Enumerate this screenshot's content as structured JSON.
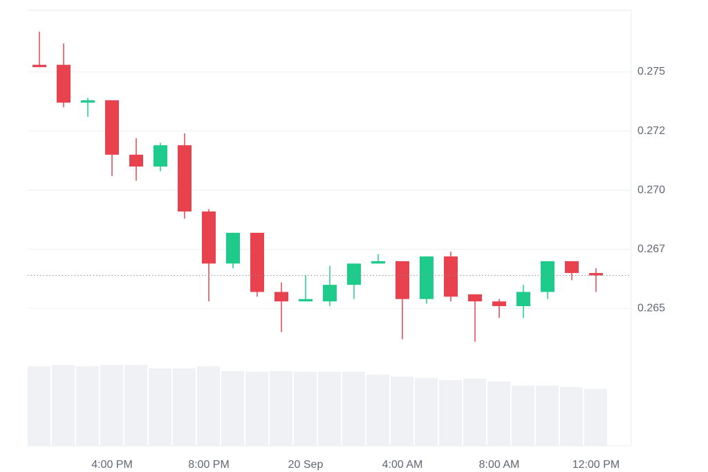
{
  "chart_data": {
    "type": "candlestick",
    "categories": [
      null,
      null,
      null,
      "4:00 PM",
      null,
      null,
      null,
      "8:00 PM",
      null,
      null,
      null,
      "20 Sep",
      null,
      null,
      null,
      "4:00 AM",
      null,
      null,
      null,
      "8:00 AM",
      null,
      null,
      null,
      "12:00 PM"
    ],
    "open": [
      0.2753,
      0.2753,
      0.2737,
      0.2738,
      0.2715,
      0.271,
      0.2719,
      0.2691,
      0.2669,
      0.2682,
      0.2657,
      0.2653,
      0.2653,
      0.266,
      0.2669,
      0.267,
      0.2654,
      0.2672,
      0.2656,
      0.2653,
      0.2651,
      0.2657,
      0.267,
      0.2665
    ],
    "high": [
      0.2767,
      0.2762,
      0.2739,
      0.2738,
      0.2722,
      0.272,
      0.2724,
      0.2692,
      0.2682,
      0.2682,
      0.2661,
      0.2664,
      0.2668,
      0.2669,
      0.2673,
      0.267,
      0.2672,
      0.2674,
      0.2656,
      0.2654,
      0.266,
      0.267,
      0.267,
      0.2667
    ],
    "low": [
      0.2752,
      0.2735,
      0.2731,
      0.2706,
      0.2704,
      0.2708,
      0.2688,
      0.2653,
      0.2667,
      0.2655,
      0.264,
      0.2653,
      0.2651,
      0.2654,
      0.2669,
      0.2637,
      0.2652,
      0.2653,
      0.2636,
      0.2646,
      0.2646,
      0.2654,
      0.2662,
      0.2657
    ],
    "close": [
      0.2752,
      0.2737,
      0.2738,
      0.2715,
      0.271,
      0.2719,
      0.2691,
      0.2669,
      0.2682,
      0.2657,
      0.2653,
      0.2654,
      0.266,
      0.2669,
      0.267,
      0.2654,
      0.2672,
      0.2655,
      0.2653,
      0.2651,
      0.2657,
      0.267,
      0.2665,
      0.2664
    ],
    "volume": [
      115,
      117,
      115,
      117,
      117,
      112,
      112,
      115,
      108,
      107,
      108,
      107,
      107,
      107,
      103,
      100,
      98,
      95,
      97,
      93,
      87,
      87,
      85,
      82
    ],
    "up_color": "#1fcb8a",
    "down_color": "#e8424f",
    "volume_color": "#eff1f4",
    "ylim": [
      0.2592,
      0.2776
    ],
    "yticks": [
      {
        "value": 0.265,
        "label": "0.265"
      },
      {
        "value": 0.2675,
        "label": "0.267"
      },
      {
        "value": 0.27,
        "label": "0.270"
      },
      {
        "value": 0.2725,
        "label": "0.272"
      },
      {
        "value": 0.275,
        "label": "0.275"
      }
    ],
    "grid": true,
    "last_price_line": true
  }
}
